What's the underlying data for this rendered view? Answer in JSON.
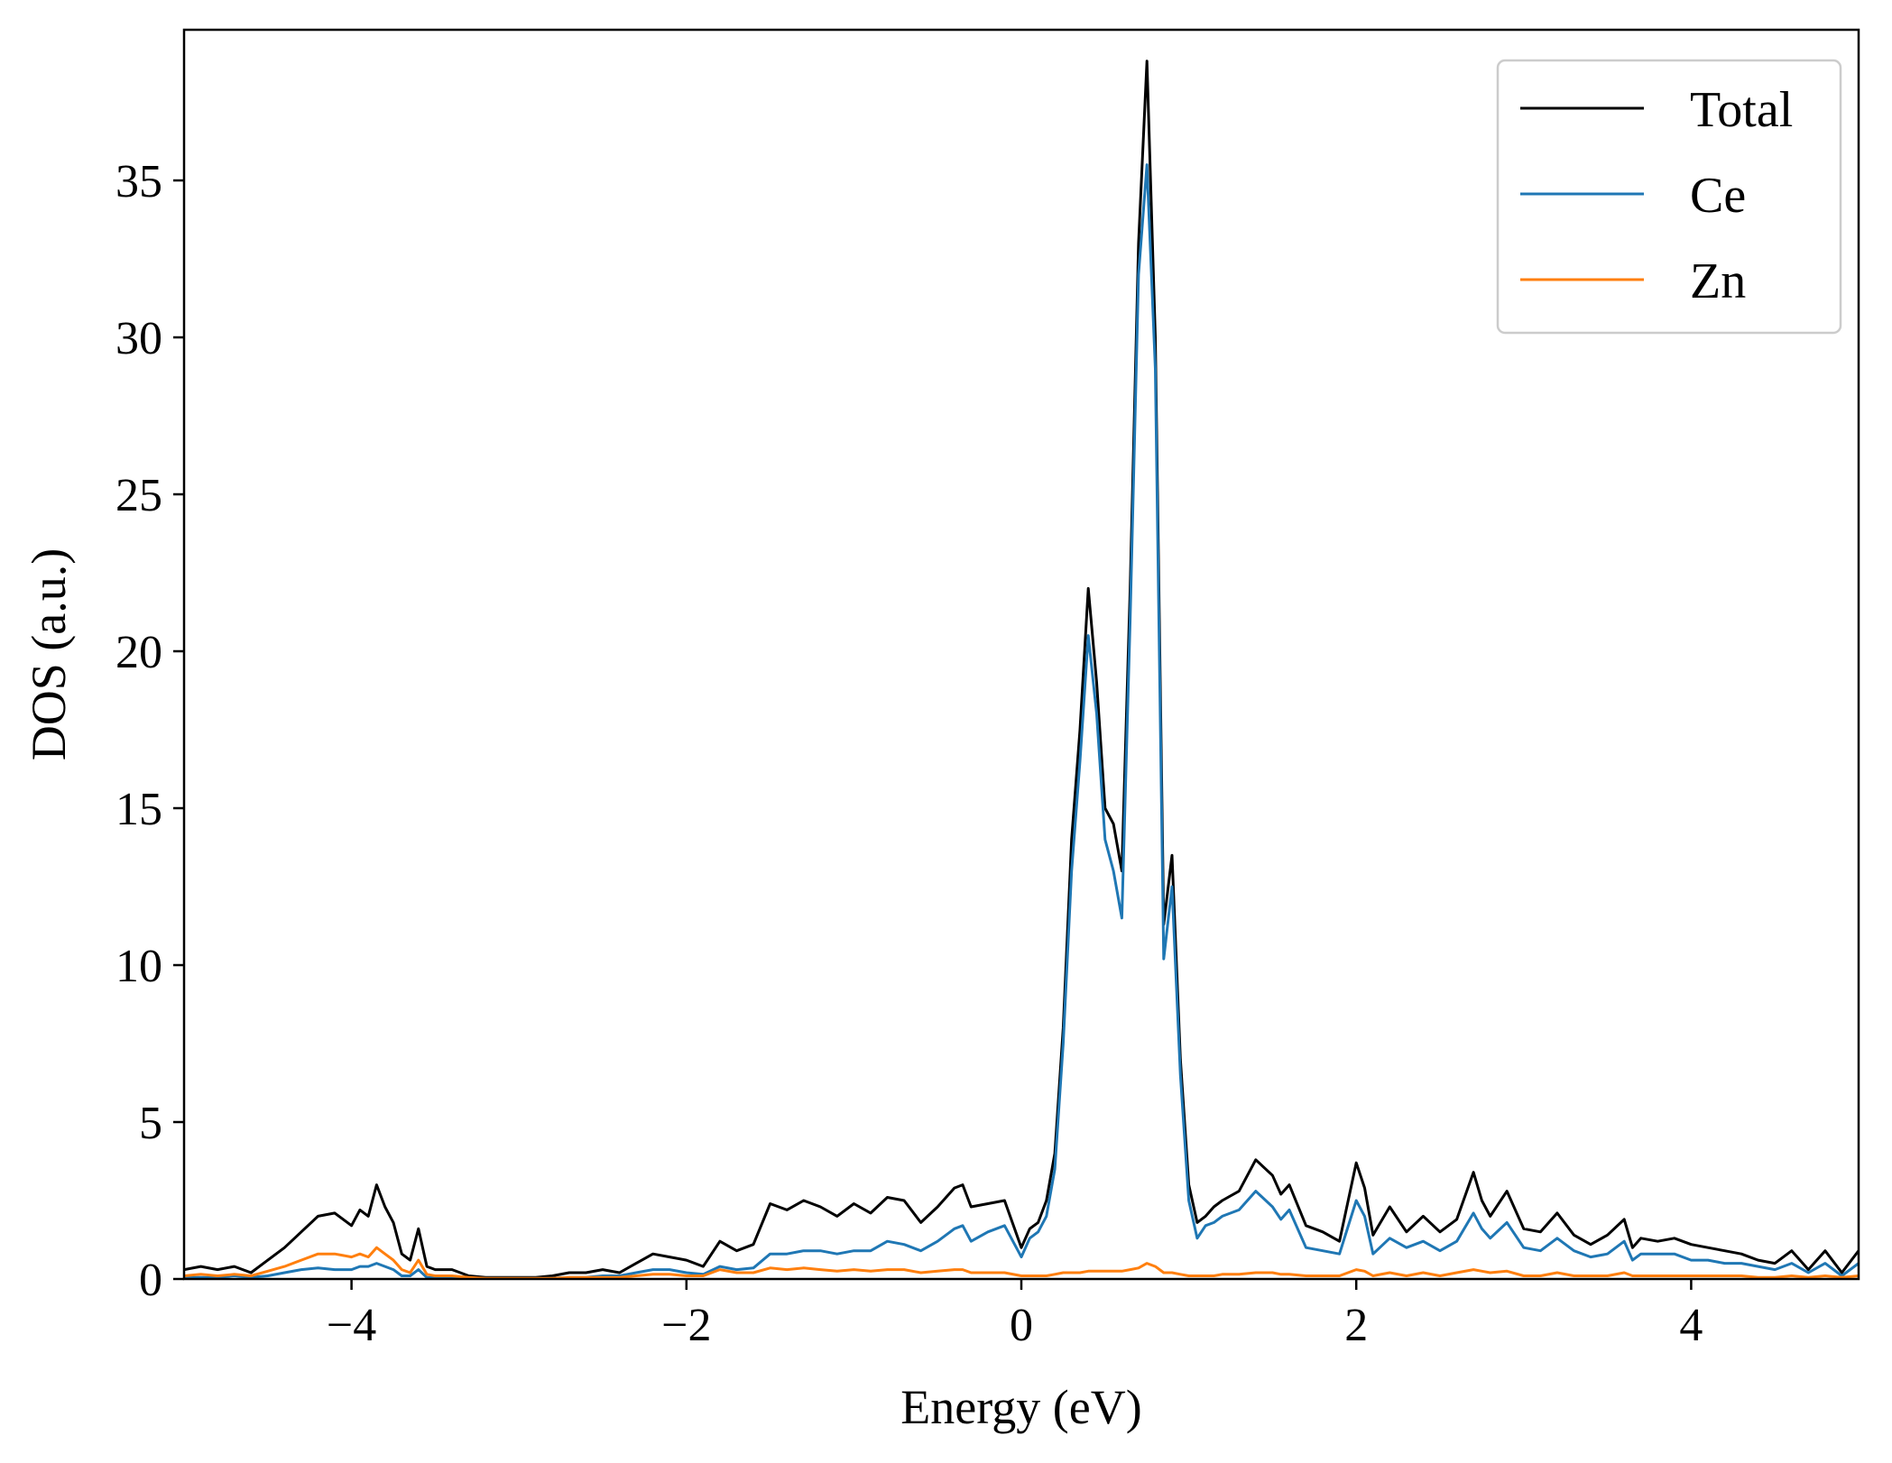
{
  "chart_data": {
    "type": "line",
    "xlabel": "Energy (eV)",
    "ylabel": "DOS (a.u.)",
    "xlim": [
      -5,
      5
    ],
    "ylim": [
      0,
      39.8
    ],
    "x_ticks": [
      -4,
      -2,
      0,
      2,
      4
    ],
    "x_tick_labels": [
      "−4",
      "−2",
      "0",
      "2",
      "4"
    ],
    "y_ticks": [
      0,
      5,
      10,
      15,
      20,
      25,
      30,
      35
    ],
    "y_tick_labels": [
      "0",
      "5",
      "10",
      "15",
      "20",
      "25",
      "30",
      "35"
    ],
    "grid": false,
    "legend_position": "top-right",
    "series": [
      {
        "name": "Total",
        "color": "#000000",
        "x": [
          -5.0,
          -4.9,
          -4.8,
          -4.7,
          -4.6,
          -4.5,
          -4.4,
          -4.3,
          -4.2,
          -4.1,
          -4.0,
          -3.95,
          -3.9,
          -3.85,
          -3.8,
          -3.75,
          -3.7,
          -3.65,
          -3.6,
          -3.55,
          -3.5,
          -3.4,
          -3.3,
          -3.2,
          -3.1,
          -3.0,
          -2.9,
          -2.8,
          -2.7,
          -2.6,
          -2.5,
          -2.4,
          -2.3,
          -2.2,
          -2.1,
          -2.0,
          -1.9,
          -1.8,
          -1.7,
          -1.6,
          -1.5,
          -1.4,
          -1.3,
          -1.2,
          -1.1,
          -1.0,
          -0.9,
          -0.8,
          -0.7,
          -0.6,
          -0.5,
          -0.4,
          -0.35,
          -0.3,
          -0.2,
          -0.1,
          0.0,
          0.05,
          0.1,
          0.15,
          0.2,
          0.25,
          0.3,
          0.35,
          0.4,
          0.45,
          0.5,
          0.55,
          0.6,
          0.65,
          0.7,
          0.75,
          0.8,
          0.85,
          0.9,
          0.95,
          1.0,
          1.05,
          1.1,
          1.15,
          1.2,
          1.3,
          1.4,
          1.5,
          1.55,
          1.6,
          1.7,
          1.8,
          1.9,
          2.0,
          2.05,
          2.1,
          2.2,
          2.3,
          2.4,
          2.5,
          2.6,
          2.7,
          2.75,
          2.8,
          2.9,
          3.0,
          3.1,
          3.2,
          3.3,
          3.4,
          3.5,
          3.6,
          3.65,
          3.7,
          3.8,
          3.9,
          4.0,
          4.1,
          4.2,
          4.3,
          4.4,
          4.5,
          4.6,
          4.7,
          4.8,
          4.9,
          5.0
        ],
        "values": [
          0.3,
          0.4,
          0.3,
          0.4,
          0.2,
          0.6,
          1.0,
          1.5,
          2.0,
          2.1,
          1.7,
          2.2,
          2.0,
          3.0,
          2.3,
          1.8,
          0.8,
          0.6,
          1.6,
          0.4,
          0.3,
          0.3,
          0.1,
          0.05,
          0.05,
          0.05,
          0.05,
          0.1,
          0.2,
          0.2,
          0.3,
          0.2,
          0.5,
          0.8,
          0.7,
          0.6,
          0.4,
          1.2,
          0.9,
          1.1,
          2.4,
          2.2,
          2.5,
          2.3,
          2.0,
          2.4,
          2.1,
          2.6,
          2.5,
          1.8,
          2.3,
          2.9,
          3.0,
          2.3,
          2.4,
          2.5,
          1.0,
          1.6,
          1.8,
          2.5,
          4.0,
          8.0,
          14.0,
          17.5,
          22.0,
          19.0,
          15.0,
          14.5,
          13.0,
          22.0,
          33.0,
          38.8,
          30.0,
          11.3,
          13.5,
          7.0,
          3.0,
          1.8,
          2.0,
          2.3,
          2.5,
          2.8,
          3.8,
          3.3,
          2.7,
          3.0,
          1.7,
          1.5,
          1.2,
          3.7,
          2.9,
          1.4,
          2.3,
          1.5,
          2.0,
          1.5,
          1.9,
          3.4,
          2.5,
          2.0,
          2.8,
          1.6,
          1.5,
          2.1,
          1.4,
          1.1,
          1.4,
          1.9,
          1.0,
          1.3,
          1.2,
          1.3,
          1.1,
          1.0,
          0.9,
          0.8,
          0.6,
          0.5,
          0.9,
          0.3,
          0.9,
          0.2,
          0.9
        ]
      },
      {
        "name": "Ce",
        "color": "#1f77b4",
        "x": [
          -5.0,
          -4.9,
          -4.8,
          -4.7,
          -4.6,
          -4.5,
          -4.4,
          -4.3,
          -4.2,
          -4.1,
          -4.0,
          -3.95,
          -3.9,
          -3.85,
          -3.8,
          -3.75,
          -3.7,
          -3.65,
          -3.6,
          -3.55,
          -3.5,
          -3.4,
          -3.3,
          -3.2,
          -3.1,
          -3.0,
          -2.9,
          -2.8,
          -2.7,
          -2.6,
          -2.5,
          -2.4,
          -2.3,
          -2.2,
          -2.1,
          -2.0,
          -1.9,
          -1.8,
          -1.7,
          -1.6,
          -1.5,
          -1.4,
          -1.3,
          -1.2,
          -1.1,
          -1.0,
          -0.9,
          -0.8,
          -0.7,
          -0.6,
          -0.5,
          -0.4,
          -0.35,
          -0.3,
          -0.2,
          -0.1,
          0.0,
          0.05,
          0.1,
          0.15,
          0.2,
          0.25,
          0.3,
          0.35,
          0.4,
          0.45,
          0.5,
          0.55,
          0.6,
          0.65,
          0.7,
          0.75,
          0.8,
          0.85,
          0.9,
          0.95,
          1.0,
          1.05,
          1.1,
          1.15,
          1.2,
          1.3,
          1.4,
          1.5,
          1.55,
          1.6,
          1.7,
          1.8,
          1.9,
          2.0,
          2.05,
          2.1,
          2.2,
          2.3,
          2.4,
          2.5,
          2.6,
          2.7,
          2.75,
          2.8,
          2.9,
          3.0,
          3.1,
          3.2,
          3.3,
          3.4,
          3.5,
          3.6,
          3.65,
          3.7,
          3.8,
          3.9,
          4.0,
          4.1,
          4.2,
          4.3,
          4.4,
          4.5,
          4.6,
          4.7,
          4.8,
          4.9,
          5.0
        ],
        "values": [
          0.05,
          0.05,
          0.05,
          0.1,
          0.05,
          0.1,
          0.2,
          0.3,
          0.35,
          0.3,
          0.3,
          0.4,
          0.4,
          0.5,
          0.4,
          0.3,
          0.1,
          0.1,
          0.3,
          0.05,
          0.05,
          0.05,
          0.02,
          0.02,
          0.02,
          0.02,
          0.02,
          0.02,
          0.05,
          0.05,
          0.1,
          0.1,
          0.2,
          0.3,
          0.3,
          0.2,
          0.15,
          0.4,
          0.3,
          0.35,
          0.8,
          0.8,
          0.9,
          0.9,
          0.8,
          0.9,
          0.9,
          1.2,
          1.1,
          0.9,
          1.2,
          1.6,
          1.7,
          1.2,
          1.5,
          1.7,
          0.7,
          1.3,
          1.5,
          2.0,
          3.5,
          7.5,
          13.0,
          16.5,
          20.5,
          18.0,
          14.0,
          13.0,
          11.5,
          21.0,
          32.0,
          35.5,
          29.0,
          10.2,
          12.5,
          6.5,
          2.5,
          1.3,
          1.7,
          1.8,
          2.0,
          2.2,
          2.8,
          2.3,
          1.9,
          2.2,
          1.0,
          0.9,
          0.8,
          2.5,
          2.0,
          0.8,
          1.3,
          1.0,
          1.2,
          0.9,
          1.2,
          2.1,
          1.6,
          1.3,
          1.8,
          1.0,
          0.9,
          1.3,
          0.9,
          0.7,
          0.8,
          1.2,
          0.6,
          0.8,
          0.8,
          0.8,
          0.6,
          0.6,
          0.5,
          0.5,
          0.4,
          0.3,
          0.5,
          0.2,
          0.5,
          0.1,
          0.5
        ]
      },
      {
        "name": "Zn",
        "color": "#ff7f0e",
        "x": [
          -5.0,
          -4.9,
          -4.8,
          -4.7,
          -4.6,
          -4.5,
          -4.4,
          -4.3,
          -4.2,
          -4.1,
          -4.0,
          -3.95,
          -3.9,
          -3.85,
          -3.8,
          -3.75,
          -3.7,
          -3.65,
          -3.6,
          -3.55,
          -3.5,
          -3.4,
          -3.3,
          -3.2,
          -3.1,
          -3.0,
          -2.9,
          -2.8,
          -2.7,
          -2.6,
          -2.5,
          -2.4,
          -2.3,
          -2.2,
          -2.1,
          -2.0,
          -1.9,
          -1.8,
          -1.7,
          -1.6,
          -1.5,
          -1.4,
          -1.3,
          -1.2,
          -1.1,
          -1.0,
          -0.9,
          -0.8,
          -0.7,
          -0.6,
          -0.5,
          -0.4,
          -0.35,
          -0.3,
          -0.2,
          -0.1,
          0.0,
          0.05,
          0.1,
          0.15,
          0.2,
          0.25,
          0.3,
          0.35,
          0.4,
          0.45,
          0.5,
          0.55,
          0.6,
          0.65,
          0.7,
          0.75,
          0.8,
          0.85,
          0.9,
          0.95,
          1.0,
          1.05,
          1.1,
          1.15,
          1.2,
          1.3,
          1.4,
          1.5,
          1.55,
          1.6,
          1.7,
          1.8,
          1.9,
          2.0,
          2.05,
          2.1,
          2.2,
          2.3,
          2.4,
          2.5,
          2.6,
          2.7,
          2.75,
          2.8,
          2.9,
          3.0,
          3.1,
          3.2,
          3.3,
          3.4,
          3.5,
          3.6,
          3.65,
          3.7,
          3.8,
          3.9,
          4.0,
          4.1,
          4.2,
          4.3,
          4.4,
          4.5,
          4.6,
          4.7,
          4.8,
          4.9,
          5.0
        ],
        "values": [
          0.1,
          0.15,
          0.1,
          0.15,
          0.1,
          0.25,
          0.4,
          0.6,
          0.8,
          0.8,
          0.7,
          0.8,
          0.7,
          1.0,
          0.8,
          0.6,
          0.3,
          0.2,
          0.6,
          0.15,
          0.1,
          0.1,
          0.05,
          0.02,
          0.02,
          0.02,
          0.02,
          0.02,
          0.05,
          0.05,
          0.05,
          0.05,
          0.1,
          0.15,
          0.15,
          0.1,
          0.1,
          0.3,
          0.2,
          0.2,
          0.35,
          0.3,
          0.35,
          0.3,
          0.25,
          0.3,
          0.25,
          0.3,
          0.3,
          0.2,
          0.25,
          0.3,
          0.3,
          0.2,
          0.2,
          0.2,
          0.1,
          0.1,
          0.1,
          0.1,
          0.15,
          0.2,
          0.2,
          0.2,
          0.25,
          0.25,
          0.25,
          0.25,
          0.25,
          0.3,
          0.35,
          0.5,
          0.4,
          0.2,
          0.2,
          0.15,
          0.1,
          0.1,
          0.1,
          0.1,
          0.15,
          0.15,
          0.2,
          0.2,
          0.15,
          0.15,
          0.1,
          0.1,
          0.1,
          0.3,
          0.25,
          0.1,
          0.2,
          0.1,
          0.2,
          0.1,
          0.2,
          0.3,
          0.25,
          0.2,
          0.25,
          0.1,
          0.1,
          0.2,
          0.1,
          0.1,
          0.1,
          0.2,
          0.1,
          0.1,
          0.1,
          0.1,
          0.1,
          0.1,
          0.1,
          0.1,
          0.05,
          0.05,
          0.1,
          0.05,
          0.1,
          0.05,
          0.1
        ]
      }
    ]
  }
}
